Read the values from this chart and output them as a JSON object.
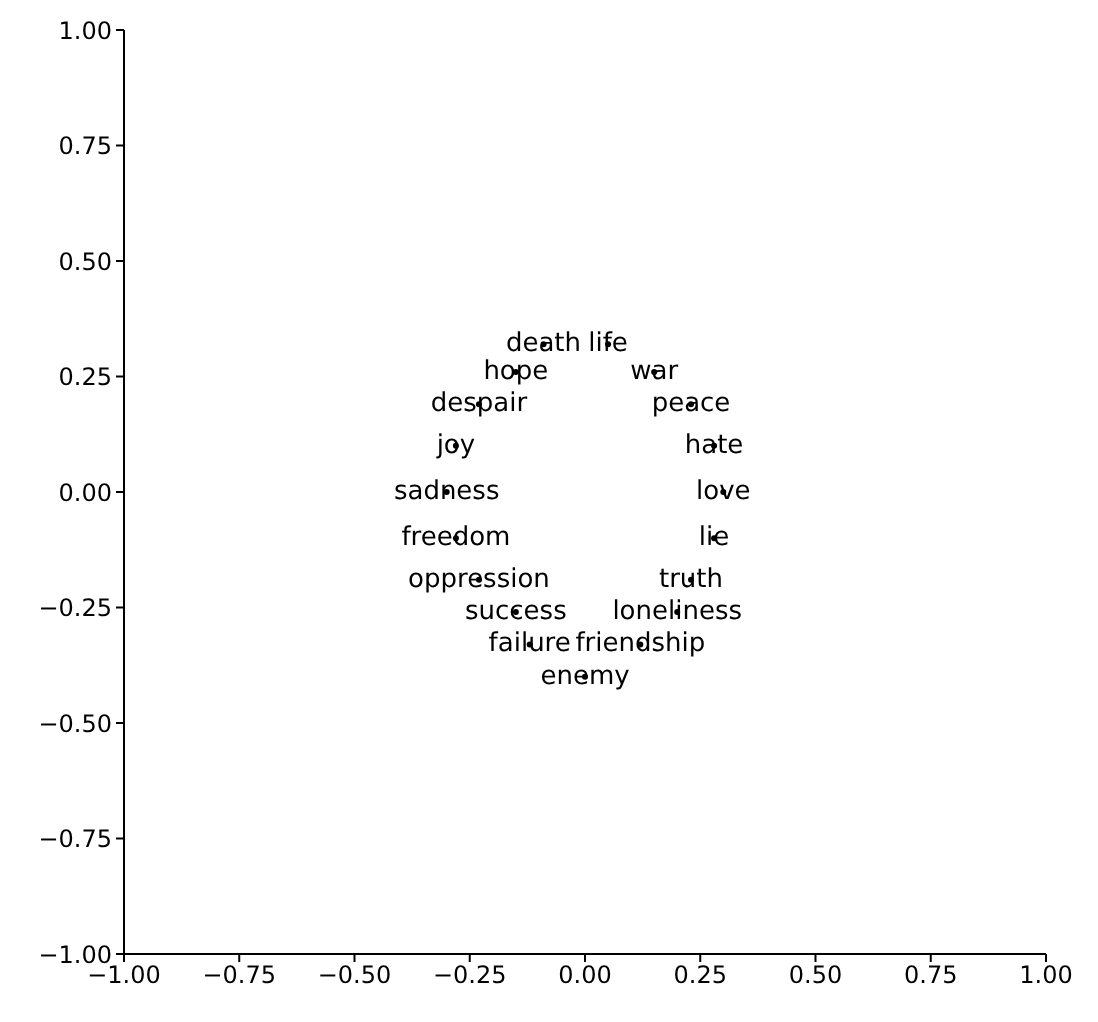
{
  "chart_data": {
    "type": "scatter",
    "marker": "circle",
    "grid": false,
    "xlim": [
      -1,
      1
    ],
    "ylim": [
      -1,
      1
    ],
    "xticks": [
      {
        "value": -1,
        "label": "−1.00"
      },
      {
        "value": -0.75,
        "label": "−0.75"
      },
      {
        "value": -0.5,
        "label": "−0.50"
      },
      {
        "value": -0.25,
        "label": "−0.25"
      },
      {
        "value": 0,
        "label": "0.00"
      },
      {
        "value": 0.25,
        "label": "0.25"
      },
      {
        "value": 0.5,
        "label": "0.50"
      },
      {
        "value": 0.75,
        "label": "0.75"
      },
      {
        "value": 1,
        "label": "1.00"
      }
    ],
    "yticks": [
      {
        "value": -1,
        "label": "−1.00"
      },
      {
        "value": -0.75,
        "label": "−0.75"
      },
      {
        "value": -0.5,
        "label": "−0.50"
      },
      {
        "value": -0.25,
        "label": "−0.25"
      },
      {
        "value": 0,
        "label": "0.00"
      },
      {
        "value": 0.25,
        "label": "0.25"
      },
      {
        "value": 0.5,
        "label": "0.50"
      },
      {
        "value": 0.75,
        "label": "0.75"
      },
      {
        "value": 1,
        "label": "1.00"
      }
    ],
    "series": [
      {
        "color": "#000000",
        "x": [
          0.3,
          0.28,
          0.23,
          0.15,
          0.05,
          -0.09,
          -0.15,
          -0.23,
          -0.28,
          -0.3,
          -0.28,
          -0.23,
          -0.15,
          -0.12,
          0,
          0.12,
          0.2,
          0.23,
          0.28
        ],
        "values": [
          0,
          0.1,
          0.19,
          0.26,
          0.32,
          0.32,
          0.26,
          0.19,
          0.1,
          0,
          -0.1,
          -0.19,
          -0.26,
          -0.33,
          -0.4,
          -0.33,
          -0.26,
          -0.19,
          -0.1
        ],
        "value_labels": [
          "love",
          "hate",
          "peace",
          "war",
          "life",
          "death",
          "hope",
          "despair",
          "joy",
          "sadness",
          "freedom",
          "oppression",
          "success",
          "failure",
          "enemy",
          "friendship",
          "loneliness",
          "truth",
          "lie"
        ]
      }
    ]
  }
}
